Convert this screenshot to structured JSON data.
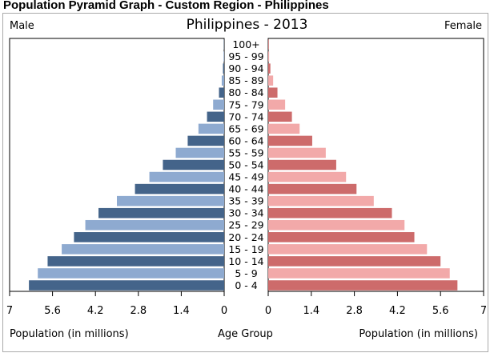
{
  "page_title": "Population Pyramid Graph - Custom Region - Philippines",
  "chart_data": {
    "type": "bar",
    "title": "Philippines - 2013",
    "left_label": "Male",
    "right_label": "Female",
    "xlabel_left": "Population (in millions)",
    "xlabel_center": "Age Group",
    "xlabel_right": "Population (in millions)",
    "xlim": [
      0,
      7
    ],
    "ticks": [
      0,
      1.4,
      2.8,
      4.2,
      5.6,
      7
    ],
    "grid": false,
    "categories": [
      "100+",
      "95 - 99",
      "90 - 94",
      "85 - 89",
      "80 - 84",
      "75 - 79",
      "70 - 74",
      "65 - 69",
      "60 - 64",
      "55 - 59",
      "50 - 54",
      "45 - 49",
      "40 - 44",
      "35 - 39",
      "30 - 34",
      "25 - 29",
      "20 - 24",
      "15 - 19",
      "10 - 14",
      "5 - 9",
      "0 - 4"
    ],
    "series": [
      {
        "name": "Male",
        "colors": [
          "#44648a",
          "#8eaad0"
        ],
        "values": [
          0.01,
          0.02,
          0.04,
          0.08,
          0.17,
          0.36,
          0.56,
          0.84,
          1.19,
          1.58,
          2.0,
          2.44,
          2.91,
          3.5,
          4.1,
          4.53,
          4.9,
          5.3,
          5.76,
          6.08,
          6.37
        ]
      },
      {
        "name": "Female",
        "colors": [
          "#cd6b6b",
          "#f2a9a9"
        ],
        "values": [
          0.02,
          0.03,
          0.07,
          0.16,
          0.3,
          0.55,
          0.77,
          1.02,
          1.43,
          1.87,
          2.21,
          2.53,
          2.87,
          3.43,
          4.02,
          4.43,
          4.75,
          5.16,
          5.6,
          5.9,
          6.15
        ]
      }
    ]
  }
}
